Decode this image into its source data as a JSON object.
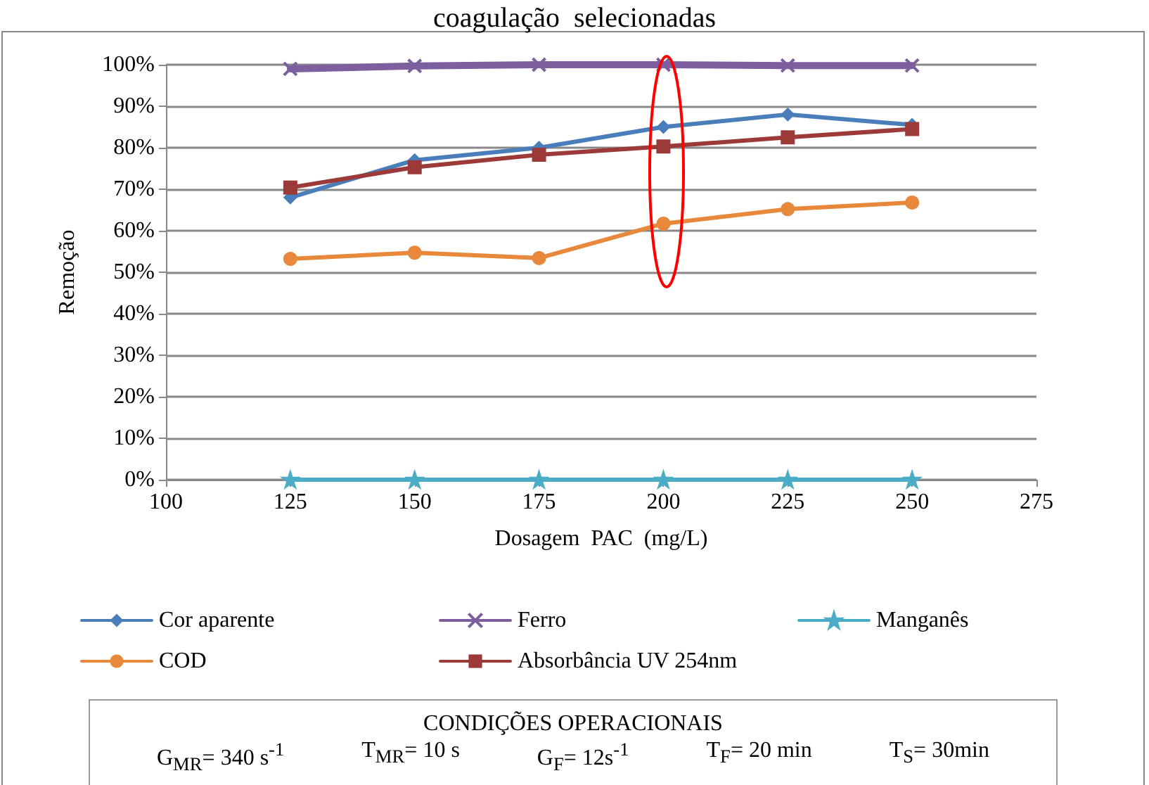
{
  "chart_data": {
    "type": "line",
    "title": "coagulação  selecionadas",
    "xlabel": "Dosagem  PAC  (mg/L)",
    "ylabel": "Remoção",
    "x": [
      125,
      150,
      175,
      200,
      225,
      250
    ],
    "xlim": [
      100,
      275
    ],
    "xticks": [
      100,
      125,
      150,
      175,
      200,
      225,
      250,
      275
    ],
    "ylim": [
      0,
      100
    ],
    "yticks": [
      {
        "value": 0,
        "label": "0%"
      },
      {
        "value": 10,
        "label": "10%"
      },
      {
        "value": 20,
        "label": "20%"
      },
      {
        "value": 30,
        "label": "30%"
      },
      {
        "value": 40,
        "label": "40%"
      },
      {
        "value": 50,
        "label": "50%"
      },
      {
        "value": 60,
        "label": "60%"
      },
      {
        "value": 70,
        "label": "70%"
      },
      {
        "value": 80,
        "label": "80%"
      },
      {
        "value": 90,
        "label": "90%"
      },
      {
        "value": 100,
        "label": "100%"
      }
    ],
    "grid": "y",
    "legend": "bottom",
    "line_style": "solid",
    "series": [
      {
        "name": "Cor aparente",
        "color": "#4a7ebb",
        "marker": "diamond",
        "values": [
          68,
          77,
          80,
          85,
          88,
          85.5
        ]
      },
      {
        "name": "Ferro",
        "color": "#7d5fa0",
        "marker": "cross",
        "values": [
          99,
          99.7,
          100,
          100,
          99.8,
          99.8
        ]
      },
      {
        "name": "Manganês",
        "color": "#4bacc6",
        "marker": "star",
        "values": [
          0,
          0,
          0,
          0,
          0,
          0
        ]
      },
      {
        "name": "COD",
        "color": "#e8883a",
        "marker": "circle",
        "values": [
          53.2,
          54.7,
          53.4,
          61.7,
          65.2,
          66.8
        ]
      },
      {
        "name": "Absorbância UV 254nm",
        "color": "#9b3a38",
        "marker": "square",
        "values": [
          70.4,
          75.3,
          78.3,
          80.3,
          82.5,
          84.5
        ]
      }
    ],
    "annotations": [
      "CONDIÇÕES  OPERACIONAIS",
      "G$_{MR}$=  340  s$^{-1}$",
      "T$_{MR}$=  10  s",
      "G$_{F}$=  12s$^{-1}$",
      "T$_{F}$=  20  min",
      "T$_{S}$=  30min"
    ]
  }
}
